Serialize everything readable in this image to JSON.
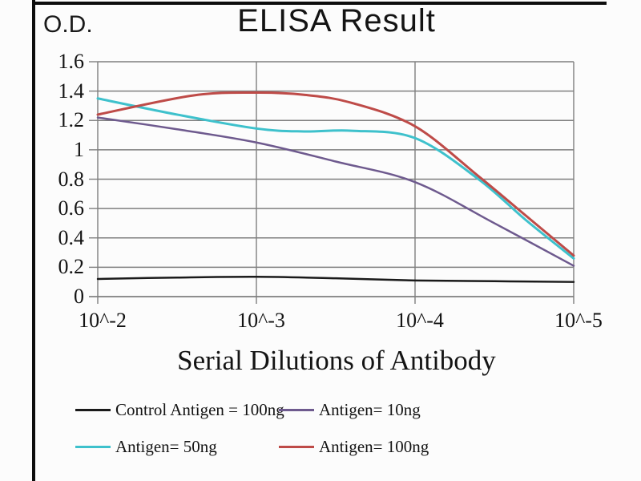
{
  "chart": {
    "title": "ELISA Result",
    "od_label": "O.D.",
    "xlabel": "Serial Dilutions of Antibody"
  },
  "chart_data": {
    "type": "line",
    "title": "ELISA Result",
    "ylabel": "O.D.",
    "xlabel": "Serial Dilutions of Antibody",
    "x_tick_labels": [
      "10^-2",
      "10^-3",
      "10^-4",
      "10^-5"
    ],
    "x_tick_exponents": [
      -2,
      -3,
      -4,
      -5
    ],
    "y_tick_labels": [
      "0",
      "0.2",
      "0.4",
      "0.6",
      "0.8",
      "1",
      "1.2",
      "1.4",
      "1.6"
    ],
    "y_ticks": [
      0,
      0.2,
      0.4,
      0.6,
      0.8,
      1.0,
      1.2,
      1.4,
      1.6
    ],
    "ylim": [
      0,
      1.6
    ],
    "grid": true,
    "grid_color": "#7f7f7f",
    "legend_position": "bottom",
    "series": [
      {
        "name": "Control Antigen = 100ng",
        "color": "#1a1a1a",
        "stroke_width": 2.5,
        "points": [
          [
            -2,
            0.12
          ],
          [
            -2.5,
            0.13
          ],
          [
            -3,
            0.135
          ],
          [
            -3.5,
            0.125
          ],
          [
            -4,
            0.11
          ],
          [
            -4.5,
            0.105
          ],
          [
            -5,
            0.1
          ]
        ]
      },
      {
        "name": "Antigen= 10ng",
        "color": "#6E5A8E",
        "stroke_width": 2.5,
        "points": [
          [
            -2,
            1.22
          ],
          [
            -2.5,
            1.14
          ],
          [
            -3,
            1.05
          ],
          [
            -3.5,
            0.92
          ],
          [
            -4,
            0.78
          ],
          [
            -4.5,
            0.5
          ],
          [
            -5,
            0.21
          ]
        ]
      },
      {
        "name": "Antigen= 50ng",
        "color": "#3EC1CC",
        "stroke_width": 3,
        "points": [
          [
            -2,
            1.35
          ],
          [
            -2.5,
            1.24
          ],
          [
            -3,
            1.145
          ],
          [
            -3.3,
            1.125
          ],
          [
            -3.6,
            1.13
          ],
          [
            -4,
            1.08
          ],
          [
            -4.4,
            0.8
          ],
          [
            -4.7,
            0.52
          ],
          [
            -5,
            0.26
          ]
        ]
      },
      {
        "name": "Antigen= 100ng",
        "color": "#BE4B48",
        "stroke_width": 3,
        "points": [
          [
            -2,
            1.24
          ],
          [
            -2.6,
            1.37
          ],
          [
            -3,
            1.39
          ],
          [
            -3.3,
            1.375
          ],
          [
            -3.6,
            1.32
          ],
          [
            -4,
            1.16
          ],
          [
            -4.4,
            0.82
          ],
          [
            -4.7,
            0.55
          ],
          [
            -5,
            0.28
          ]
        ]
      }
    ]
  },
  "legend": {
    "items": [
      {
        "label": "Control Antigen = 100ng",
        "color": "#1a1a1a"
      },
      {
        "label": "Antigen= 10ng",
        "color": "#6E5A8E"
      },
      {
        "label": "Antigen= 50ng",
        "color": "#3EC1CC"
      },
      {
        "label": "Antigen= 100ng",
        "color": "#BE4B48"
      }
    ]
  }
}
